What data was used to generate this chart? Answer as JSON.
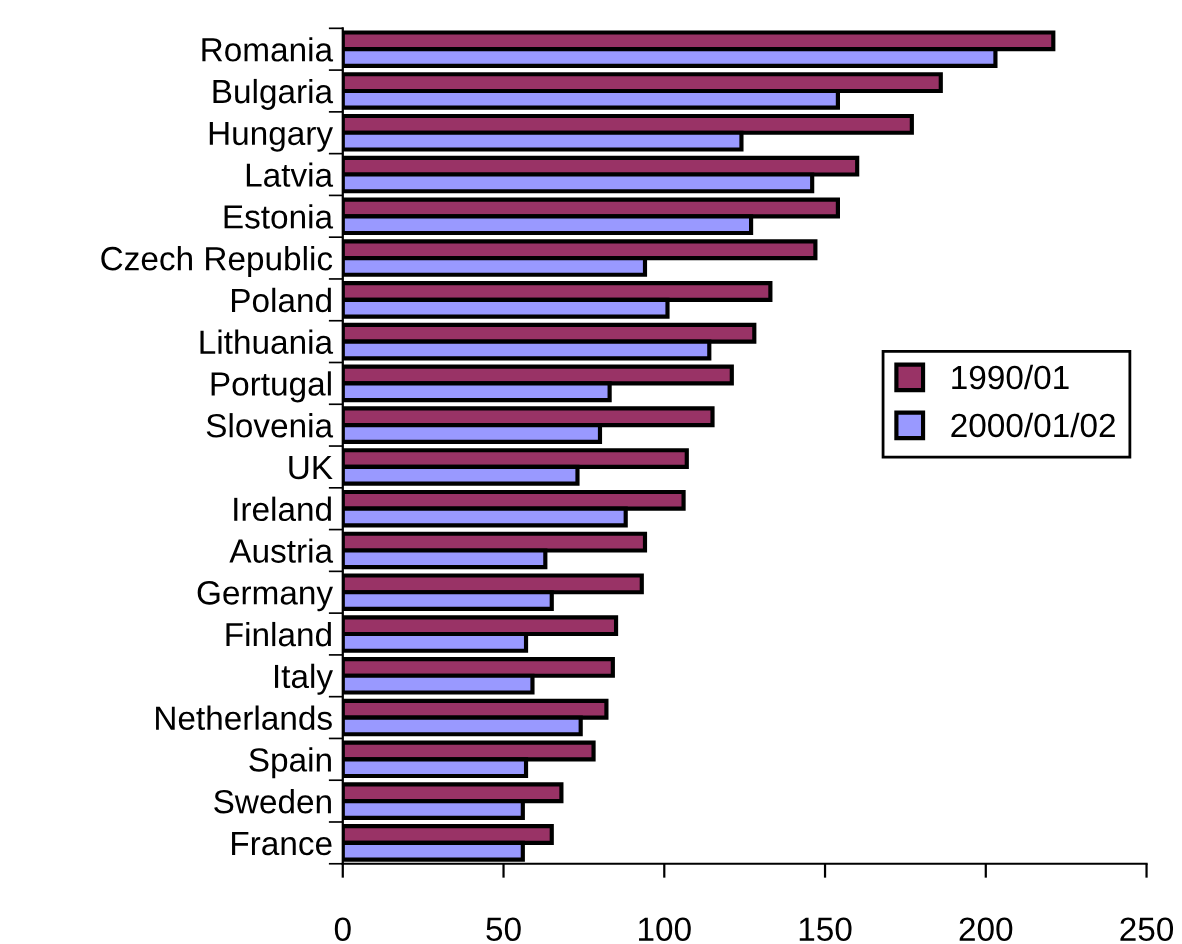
{
  "chart_data": {
    "type": "bar",
    "orientation": "horizontal",
    "categories": [
      "Romania",
      "Bulgaria",
      "Hungary",
      "Latvia",
      "Estonia",
      "Czech Republic",
      "Poland",
      "Lithuania",
      "Portugal",
      "Slovenia",
      "UK",
      "Ireland",
      "Austria",
      "Germany",
      "Finland",
      "Italy",
      "Netherlands",
      "Spain",
      "Sweden",
      "France"
    ],
    "series": [
      {
        "name": "1990/01",
        "color": "#993366",
        "values": [
          221,
          186,
          177,
          160,
          154,
          147,
          133,
          128,
          121,
          115,
          107,
          106,
          94,
          93,
          85,
          84,
          82,
          78,
          68,
          65
        ]
      },
      {
        "name": "2000/01/02",
        "color": "#9999ff",
        "values": [
          203,
          154,
          124,
          146,
          127,
          94,
          101,
          114,
          83,
          80,
          73,
          88,
          63,
          65,
          57,
          59,
          74,
          57,
          56,
          56
        ]
      }
    ],
    "xlim": [
      0,
      250
    ],
    "xticks": [
      0,
      50,
      100,
      150,
      200,
      250
    ],
    "grid": false,
    "legend": "right"
  }
}
